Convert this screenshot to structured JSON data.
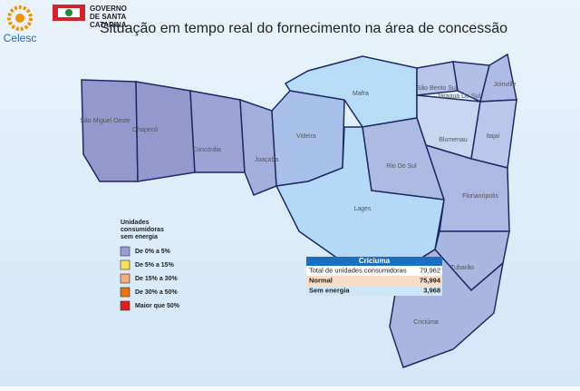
{
  "header": {
    "logo_left": "Celesc",
    "logo_right": [
      "GOVERNO",
      "DE SANTA",
      "CATARINA"
    ],
    "title": "Situação em tempo real do fornecimento na área de concessão"
  },
  "map": {
    "regions": [
      {
        "label": "São Miguel Oeste",
        "color": "#9598cc"
      },
      {
        "label": "Chapecó",
        "color": "#9598cc"
      },
      {
        "label": "Concórdia",
        "color": "#9ea3d6"
      },
      {
        "label": "Joaçaba",
        "color": "#a4b0dc"
      },
      {
        "label": "Videira",
        "color": "#a9c0ea"
      },
      {
        "label": "Mafra",
        "color": "#b6dcf6"
      },
      {
        "label": "Lages",
        "color": "#b3d9f6"
      },
      {
        "label": "São Bento Sul",
        "color": "#b9c6ea"
      },
      {
        "label": "Jaraguá Do Sul",
        "color": "#b3c0e6"
      },
      {
        "label": "Joinville",
        "color": "#aebbe4"
      },
      {
        "label": "Blumenau",
        "color": "#c9d6ef"
      },
      {
        "label": "Itajaí",
        "color": "#b9c8ea"
      },
      {
        "label": "Rio Do Sul",
        "color": "#adbbe3"
      },
      {
        "label": "Florianópolis",
        "color": "#acb9e2"
      },
      {
        "label": "Tubarão",
        "color": "#a9b8e1"
      },
      {
        "label": "Criciúma",
        "color": "#a8b6e0"
      }
    ]
  },
  "legend": {
    "title": [
      "Unidades",
      "consumidoras",
      "sem energia"
    ],
    "items": [
      {
        "label": "De 0% a 5%",
        "color": "#9a9cd8"
      },
      {
        "label": "De 5% a 15%",
        "color": "#f5e15a"
      },
      {
        "label": "De 15% a 30%",
        "color": "#f2ab7e"
      },
      {
        "label": "De 30% a 50%",
        "color": "#e8760f"
      },
      {
        "label": "Maior que 50%",
        "color": "#e01e1e"
      }
    ]
  },
  "info_box": {
    "title": "Criciuma",
    "rows": [
      [
        "Total de unidades consumidoras",
        "79,962"
      ],
      [
        "Normal",
        "75,994"
      ],
      [
        "Sem energia",
        "3,968"
      ]
    ]
  }
}
